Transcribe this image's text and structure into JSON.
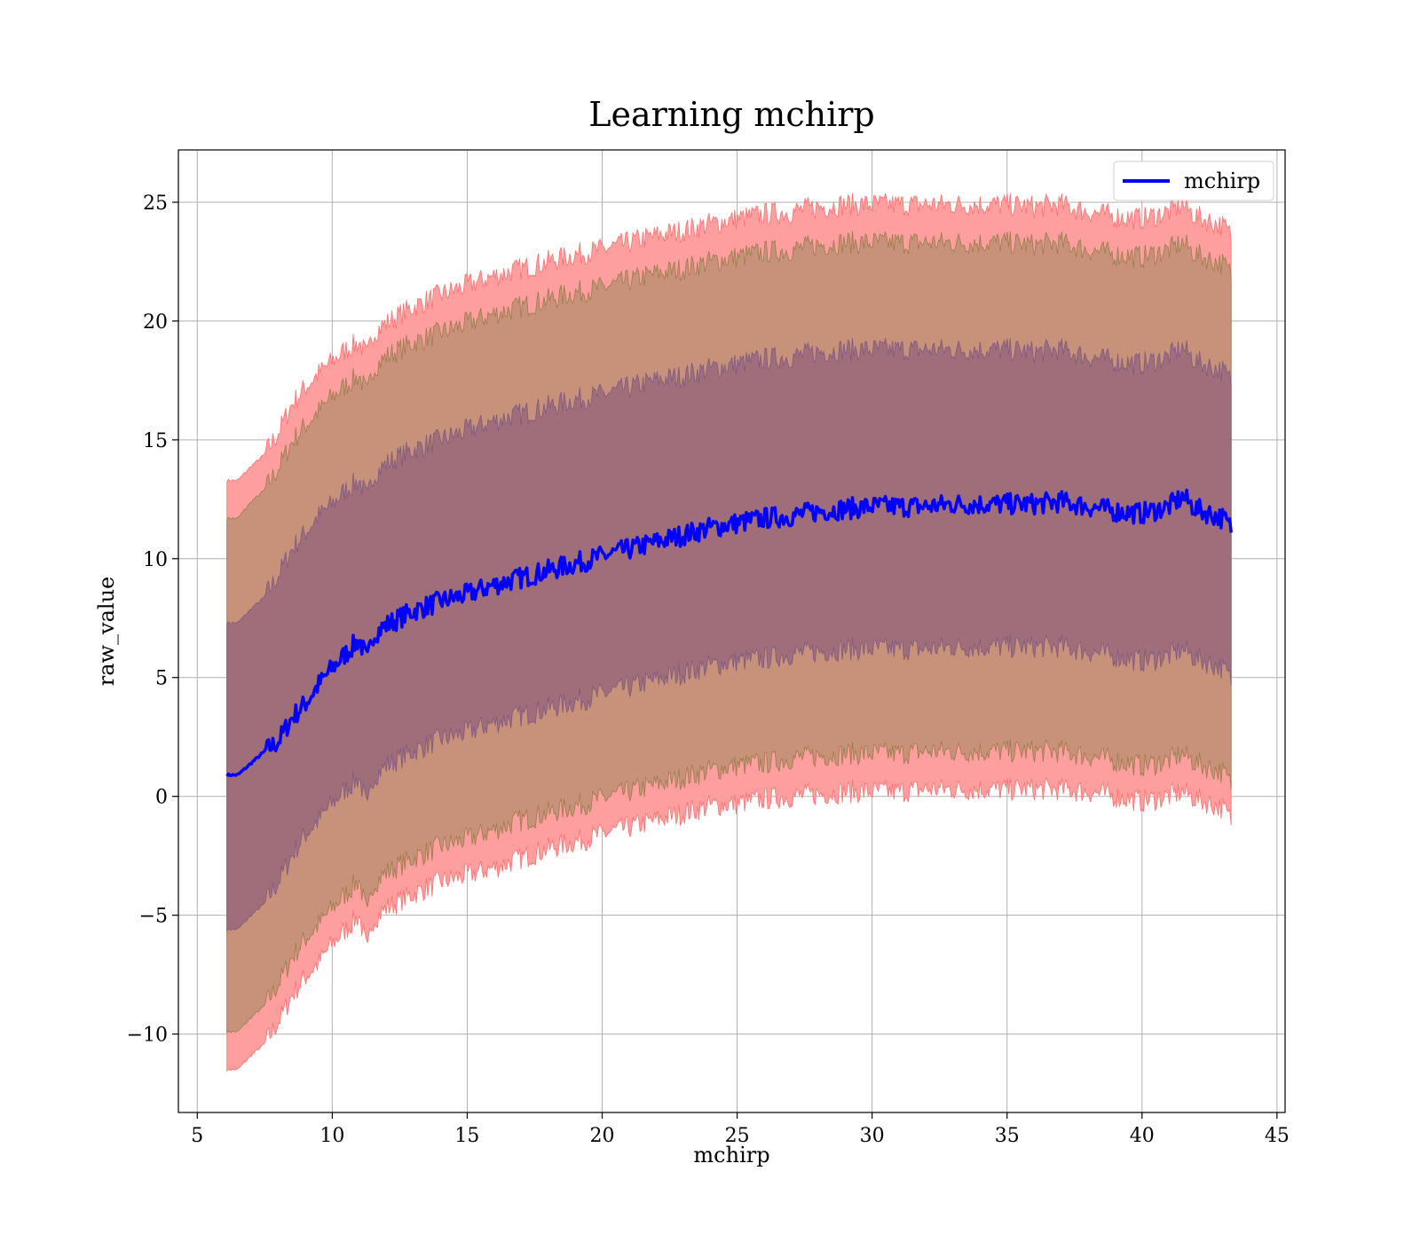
{
  "chart_data": {
    "type": "line",
    "title": "Learning mchirp",
    "xlabel": "mchirp",
    "ylabel": "raw_value",
    "xlim": [
      4.3,
      45.3
    ],
    "ylim": [
      -13.3,
      27.2
    ],
    "xticks": [
      5,
      10,
      15,
      20,
      25,
      30,
      35,
      40,
      45
    ],
    "yticks": [
      -10,
      -5,
      0,
      5,
      10,
      15,
      20,
      25
    ],
    "xtick_labels": [
      "5",
      "10",
      "15",
      "20",
      "25",
      "30",
      "35",
      "40",
      "45"
    ],
    "ytick_labels": [
      "−10",
      "−5",
      "0",
      "5",
      "10",
      "15",
      "20",
      "25"
    ],
    "grid": true,
    "legend": {
      "position": "top-right",
      "entries": [
        "mchirp"
      ]
    },
    "colors": {
      "line": "#0000ff",
      "band_3sigma": "#ff9e9e",
      "band_2sigma": "#c8917a",
      "band_1sigma": "#a06e7a",
      "grid": "#b0b0b0"
    },
    "series": [
      {
        "name": "mchirp",
        "x": [
          6.1,
          6.5,
          7.0,
          7.5,
          8.0,
          8.5,
          9.0,
          9.5,
          10.0,
          10.5,
          11.0,
          11.3,
          11.5,
          12,
          13,
          14,
          15,
          16,
          17,
          18,
          19,
          20,
          21,
          22,
          23,
          24,
          25,
          26,
          27,
          28,
          29,
          30,
          31,
          32,
          33,
          34,
          35,
          36,
          37,
          38,
          39,
          40,
          41,
          41.5,
          42,
          43,
          43.3
        ],
        "y": [
          0.9,
          0.9,
          1.4,
          1.9,
          2.3,
          3.3,
          3.9,
          4.7,
          5.4,
          6.0,
          6.6,
          5.7,
          6.8,
          7.2,
          7.8,
          8.2,
          8.5,
          8.9,
          9.2,
          9.5,
          9.8,
          10.1,
          10.4,
          10.7,
          11.0,
          11.3,
          11.5,
          11.7,
          11.8,
          12.0,
          12.1,
          12.2,
          12.2,
          12.2,
          12.3,
          12.3,
          12.3,
          12.3,
          12.4,
          12.2,
          12.0,
          11.9,
          12.2,
          12.6,
          12.1,
          11.7,
          11.3
        ]
      }
    ],
    "bands": [
      {
        "level": "3sigma",
        "upper": [
          13.3,
          13.3,
          13.9,
          14.4,
          15.3,
          16.5,
          17.2,
          17.8,
          18.3,
          18.8,
          19.1,
          18.5,
          19.5,
          19.9,
          20.6,
          21.1,
          21.5,
          21.9,
          22.2,
          22.5,
          22.8,
          23.0,
          23.3,
          23.6,
          23.8,
          24.1,
          24.3,
          24.5,
          24.6,
          24.8,
          24.9,
          24.9,
          24.9,
          24.9,
          24.9,
          24.9,
          24.9,
          24.8,
          24.9,
          24.6,
          24.4,
          24.3,
          24.6,
          24.9,
          24.4,
          24.0,
          23.6
        ],
        "lower": [
          -11.5,
          -11.5,
          -10.9,
          -10.4,
          -9.5,
          -8.4,
          -7.6,
          -7.0,
          -6.2,
          -5.6,
          -5.0,
          -6.6,
          -5.2,
          -4.7,
          -4.1,
          -3.6,
          -3.3,
          -3.0,
          -2.6,
          -2.2,
          -1.9,
          -1.6,
          -1.3,
          -1.0,
          -0.7,
          -0.4,
          -0.3,
          -0.1,
          0.0,
          0.1,
          0.2,
          0.2,
          0.2,
          0.3,
          0.3,
          0.3,
          0.3,
          0.3,
          0.3,
          0.2,
          0.0,
          -0.2,
          0.0,
          0.2,
          -0.1,
          -0.5,
          -1.0
        ]
      },
      {
        "level": "2sigma",
        "upper": [
          11.7,
          11.7,
          12.4,
          12.9,
          13.8,
          14.9,
          15.6,
          16.2,
          16.8,
          17.3,
          17.7,
          16.9,
          18.0,
          18.5,
          19.1,
          19.5,
          19.9,
          20.3,
          20.6,
          20.9,
          21.2,
          21.4,
          21.7,
          22.0,
          22.2,
          22.5,
          22.7,
          22.9,
          23.0,
          23.2,
          23.3,
          23.3,
          23.3,
          23.3,
          23.3,
          23.3,
          23.3,
          23.2,
          23.3,
          23.0,
          22.8,
          22.7,
          23.0,
          23.3,
          22.8,
          22.4,
          22.0
        ],
        "lower": [
          -9.9,
          -9.9,
          -9.3,
          -8.8,
          -7.9,
          -6.8,
          -6.0,
          -5.4,
          -4.7,
          -4.1,
          -3.5,
          -5.1,
          -3.7,
          -3.2,
          -2.6,
          -2.1,
          -1.8,
          -1.4,
          -1.0,
          -0.7,
          -0.4,
          -0.1,
          0.2,
          0.5,
          0.8,
          1.1,
          1.3,
          1.4,
          1.6,
          1.7,
          1.8,
          1.8,
          1.8,
          1.9,
          1.9,
          1.9,
          1.9,
          1.9,
          1.9,
          1.7,
          1.5,
          1.3,
          1.5,
          1.8,
          1.4,
          1.0,
          0.5
        ]
      },
      {
        "level": "1sigma",
        "upper": [
          7.3,
          7.3,
          7.9,
          8.4,
          9.3,
          10.4,
          11.1,
          11.8,
          12.3,
          12.9,
          13.3,
          12.5,
          13.5,
          14.0,
          14.6,
          15.0,
          15.4,
          15.8,
          16.1,
          16.4,
          16.7,
          16.9,
          17.2,
          17.5,
          17.7,
          18.0,
          18.2,
          18.4,
          18.5,
          18.7,
          18.8,
          18.8,
          18.8,
          18.8,
          18.8,
          18.8,
          18.8,
          18.7,
          18.8,
          18.5,
          18.3,
          18.2,
          18.5,
          18.9,
          18.3,
          17.9,
          17.5
        ],
        "lower": [
          -5.6,
          -5.6,
          -5.0,
          -4.5,
          -3.6,
          -2.5,
          -1.6,
          -1.0,
          -0.3,
          0.3,
          0.8,
          -0.6,
          0.8,
          1.3,
          1.9,
          2.4,
          2.7,
          3.1,
          3.4,
          3.7,
          4.0,
          4.3,
          4.6,
          4.9,
          5.2,
          5.5,
          5.7,
          5.8,
          6.0,
          6.1,
          6.2,
          6.2,
          6.2,
          6.2,
          6.3,
          6.3,
          6.3,
          6.3,
          6.3,
          6.1,
          5.9,
          5.7,
          5.9,
          6.2,
          5.8,
          5.4,
          4.9
        ]
      }
    ]
  }
}
